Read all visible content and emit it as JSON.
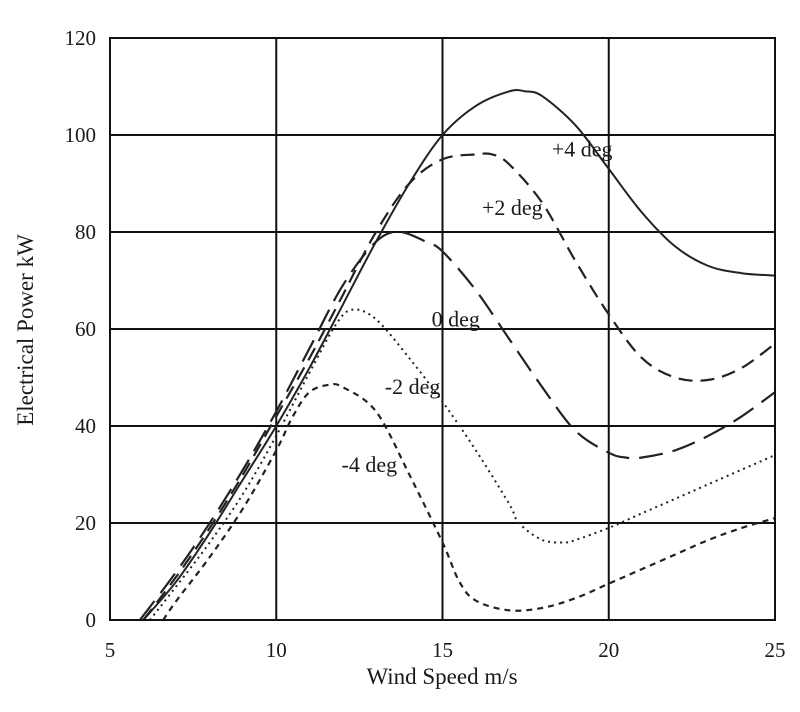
{
  "chart_data": {
    "type": "line",
    "xlabel": "Wind Speed m/s",
    "ylabel": "Electrical Power kW",
    "xlim": [
      5,
      25
    ],
    "ylim": [
      0,
      120
    ],
    "xticks": [
      "5",
      "10",
      "15",
      "20",
      "25"
    ],
    "yticks": [
      "0",
      "20",
      "40",
      "60",
      "80",
      "100",
      "120"
    ],
    "grid": true,
    "legend": "none",
    "series": [
      {
        "name": "+4 deg",
        "style": "solid",
        "x": [
          6.0,
          7,
          8,
          9,
          10,
          11,
          12,
          13,
          14,
          15,
          16,
          17,
          17.5,
          18,
          19,
          20,
          21,
          22,
          23,
          24,
          25
        ],
        "y": [
          0,
          8,
          18,
          29,
          40,
          52,
          65,
          78,
          90,
          100,
          106,
          109,
          109,
          108,
          102,
          93,
          84,
          77,
          73,
          71.5,
          71
        ]
      },
      {
        "name": "+2 deg",
        "style": "dashed",
        "x": [
          6.0,
          7,
          8,
          9,
          10,
          11,
          12,
          13,
          14,
          15,
          16,
          16.5,
          17,
          18,
          19,
          20,
          21,
          22,
          23,
          24,
          25
        ],
        "y": [
          0,
          9,
          19,
          30,
          42,
          54,
          67,
          80,
          90,
          95,
          96,
          96,
          94,
          86,
          74,
          63,
          54,
          50,
          49.5,
          52,
          57
        ]
      },
      {
        "name": "0 deg",
        "style": "long-dashed",
        "x": [
          5.9,
          7,
          8,
          9,
          10,
          11,
          12,
          13,
          13.7,
          14.5,
          15,
          16,
          17,
          18,
          19,
          20,
          20.5,
          21,
          22,
          23,
          24,
          25
        ],
        "y": [
          0,
          10,
          20,
          31,
          43,
          56,
          69,
          78,
          80,
          78,
          76,
          68,
          58,
          48,
          39,
          34.5,
          33.5,
          33.5,
          35,
          38,
          42,
          47
        ]
      },
      {
        "name": "-2 deg",
        "style": "dotted",
        "x": [
          6.2,
          7,
          8,
          9,
          10,
          11,
          11.8,
          12.3,
          13,
          14,
          15,
          16,
          17,
          17.3,
          18,
          18.7,
          19,
          20,
          21,
          22,
          23,
          24,
          25
        ],
        "y": [
          0,
          7,
          16,
          26,
          38,
          51,
          61,
          64,
          62,
          54,
          45,
          35,
          24,
          20,
          16.5,
          16,
          16.5,
          19,
          22,
          25,
          28,
          31,
          34
        ]
      },
      {
        "name": "-4 deg",
        "style": "short-dashed",
        "x": [
          6.6,
          7,
          8,
          9,
          10,
          10.5,
          11,
          11.6,
          12,
          13,
          14,
          15,
          15.5,
          16,
          17,
          18,
          19,
          20,
          21,
          22,
          23,
          24,
          25
        ],
        "y": [
          0,
          4,
          13,
          23,
          35,
          42,
          47,
          48.5,
          48,
          43,
          30,
          16,
          8,
          4,
          2,
          2.5,
          4.5,
          7.5,
          10.5,
          13.5,
          16.5,
          19,
          21
        ]
      }
    ],
    "annotations": [
      {
        "text": "+4 deg",
        "x": 19.2,
        "y": 97
      },
      {
        "text": "+2 deg",
        "x": 17.1,
        "y": 85
      },
      {
        "text": "0 deg",
        "x": 15.4,
        "y": 62
      },
      {
        "text": "-2 deg",
        "x": 14.1,
        "y": 48
      },
      {
        "text": "-4 deg",
        "x": 12.8,
        "y": 32
      }
    ]
  }
}
